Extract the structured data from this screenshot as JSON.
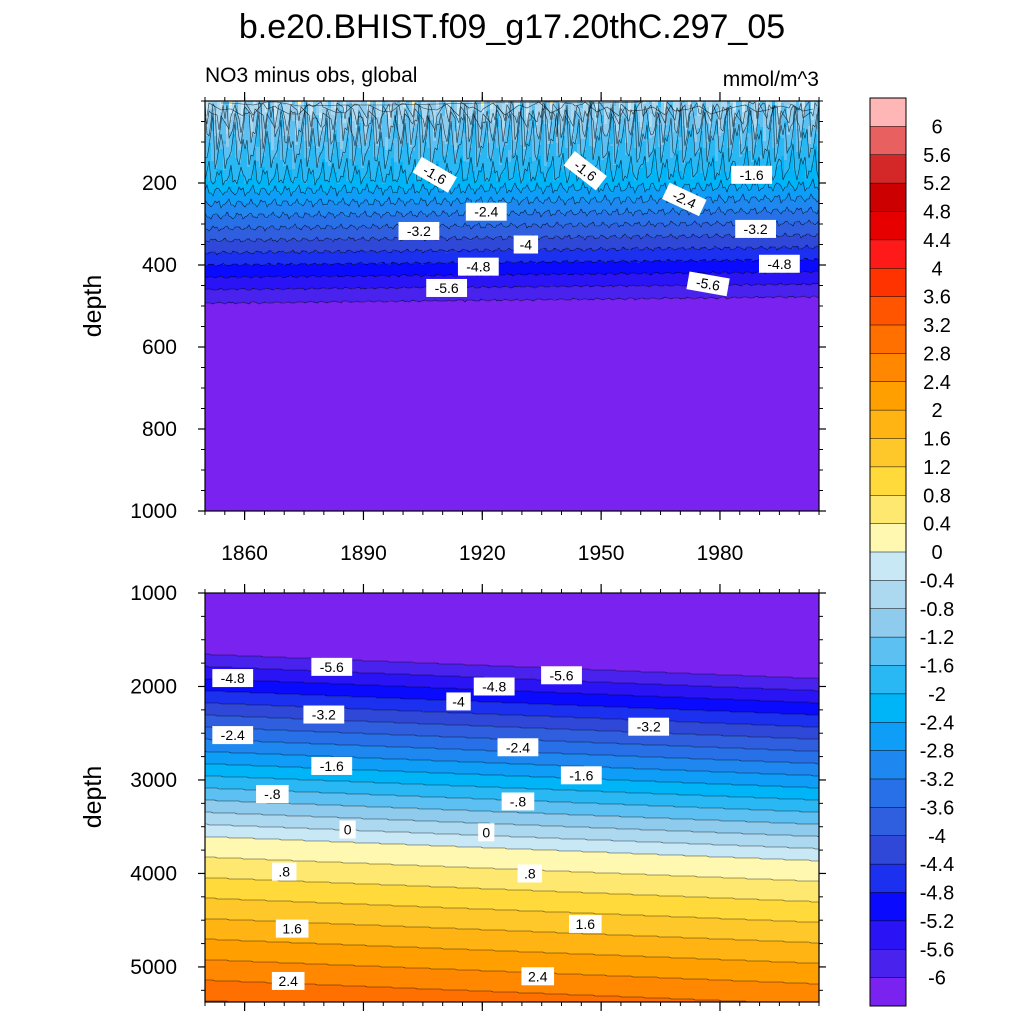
{
  "figure": {
    "title": "b.e20.BHIST.f09_g17.20thC.297_05",
    "subtitle_left": "NO3 minus obs, global",
    "subtitle_right": "mmol/m^3"
  },
  "chart_data": [
    {
      "type": "contour",
      "panel": "upper",
      "ylabel": "depth",
      "xlabel": "",
      "x_ticks": [
        "1860",
        "1890",
        "1920",
        "1950",
        "1980"
      ],
      "x_tick_values": [
        1860,
        1890,
        1920,
        1950,
        1980
      ],
      "xlim": [
        1850,
        2005
      ],
      "y_ticks": [
        "200",
        "400",
        "600",
        "800",
        "1000"
      ],
      "y_tick_values": [
        200,
        400,
        600,
        800,
        1000
      ],
      "ylim": [
        0,
        1000
      ],
      "y_reversed": true,
      "contour_labels": [
        {
          "text": "-1.6",
          "x": 1908,
          "y": 180,
          "rot": 30
        },
        {
          "text": "-1.6",
          "x": 1946,
          "y": 170,
          "rot": 38
        },
        {
          "text": "-1.6",
          "x": 1988,
          "y": 180,
          "rot": 0
        },
        {
          "text": "-2.4",
          "x": 1921,
          "y": 270,
          "rot": 0
        },
        {
          "text": "-2.4",
          "x": 1971,
          "y": 240,
          "rot": 25
        },
        {
          "text": "-3.2",
          "x": 1904,
          "y": 317,
          "rot": 0
        },
        {
          "text": "-3.2",
          "x": 1989,
          "y": 312,
          "rot": 0
        },
        {
          "text": "-4",
          "x": 1931,
          "y": 350,
          "rot": 0
        },
        {
          "text": "-4.8",
          "x": 1919,
          "y": 404,
          "rot": 0
        },
        {
          "text": "-4.8",
          "x": 1995,
          "y": 397,
          "rot": 0
        },
        {
          "text": "-5.6",
          "x": 1911,
          "y": 456,
          "rot": 0
        },
        {
          "text": "-5.6",
          "x": 1977,
          "y": 446,
          "rot": 10
        }
      ]
    },
    {
      "type": "contour",
      "panel": "lower",
      "ylabel": "depth",
      "xlabel": "",
      "y_ticks": [
        "1000",
        "2000",
        "3000",
        "4000",
        "5000"
      ],
      "y_tick_values": [
        1000,
        2000,
        3000,
        4000,
        5000
      ],
      "xlim": [
        1850,
        2005
      ],
      "ylim": [
        1000,
        5375
      ],
      "y_reversed": true,
      "contour_labels": [
        {
          "text": "-5.6",
          "x": 1882,
          "y": 1790,
          "rot": 0
        },
        {
          "text": "-5.6",
          "x": 1940,
          "y": 1880,
          "rot": 0
        },
        {
          "text": "-4.8",
          "x": 1857,
          "y": 1910,
          "rot": 0
        },
        {
          "text": "-4.8",
          "x": 1923,
          "y": 2000,
          "rot": 0
        },
        {
          "text": "-4",
          "x": 1914,
          "y": 2160,
          "rot": 0
        },
        {
          "text": "-3.2",
          "x": 1880,
          "y": 2300,
          "rot": 0
        },
        {
          "text": "-3.2",
          "x": 1962,
          "y": 2430,
          "rot": 0
        },
        {
          "text": "-2.4",
          "x": 1857,
          "y": 2520,
          "rot": 0
        },
        {
          "text": "-2.4",
          "x": 1929,
          "y": 2650,
          "rot": 0
        },
        {
          "text": "-1.6",
          "x": 1882,
          "y": 2850,
          "rot": 0
        },
        {
          "text": "-1.6",
          "x": 1945,
          "y": 2950,
          "rot": 0
        },
        {
          "text": "-.8",
          "x": 1867,
          "y": 3150,
          "rot": 0
        },
        {
          "text": "-.8",
          "x": 1929,
          "y": 3230,
          "rot": 0
        },
        {
          "text": "0",
          "x": 1886,
          "y": 3530,
          "rot": 0
        },
        {
          "text": "0",
          "x": 1921,
          "y": 3560,
          "rot": 0
        },
        {
          "text": ".8",
          "x": 1870,
          "y": 3980,
          "rot": 0
        },
        {
          "text": ".8",
          "x": 1932,
          "y": 4000,
          "rot": 0
        },
        {
          "text": "1.6",
          "x": 1872,
          "y": 4590,
          "rot": 0
        },
        {
          "text": "1.6",
          "x": 1946,
          "y": 4540,
          "rot": 0
        },
        {
          "text": "2.4",
          "x": 1871,
          "y": 5150,
          "rot": 0
        },
        {
          "text": "2.4",
          "x": 1934,
          "y": 5100,
          "rot": 0
        }
      ]
    }
  ],
  "colorbar": {
    "labels": [
      "6",
      "5.6",
      "5.2",
      "4.8",
      "4.4",
      "4",
      "3.6",
      "3.2",
      "2.8",
      "2.4",
      "2",
      "1.6",
      "1.2",
      "0.8",
      "0.4",
      "0",
      "-0.4",
      "-0.8",
      "-1.2",
      "-1.6",
      "-2",
      "-2.4",
      "-2.8",
      "-3.2",
      "-3.6",
      "-4",
      "-4.4",
      "-4.8",
      "-5.2",
      "-5.6",
      "-6"
    ],
    "colors": [
      "#ffb6b6",
      "#e86060",
      "#d42828",
      "#cc0000",
      "#e60000",
      "#ff1a1a",
      "#ff3300",
      "#ff5500",
      "#ff7000",
      "#ff8800",
      "#ffa000",
      "#ffb414",
      "#ffc82a",
      "#ffda3a",
      "#ffe870",
      "#fff8b0",
      "#c8e8f5",
      "#acd8f0",
      "#8ecbed",
      "#5cc0f2",
      "#2ab8f5",
      "#00b4f8",
      "#0e9ef8",
      "#1e88f0",
      "#2870e8",
      "#2f5edf",
      "#3048d8",
      "#1c30f0",
      "#0a0aff",
      "#2a14f5",
      "#4a22ee",
      "#7a22f0"
    ]
  }
}
